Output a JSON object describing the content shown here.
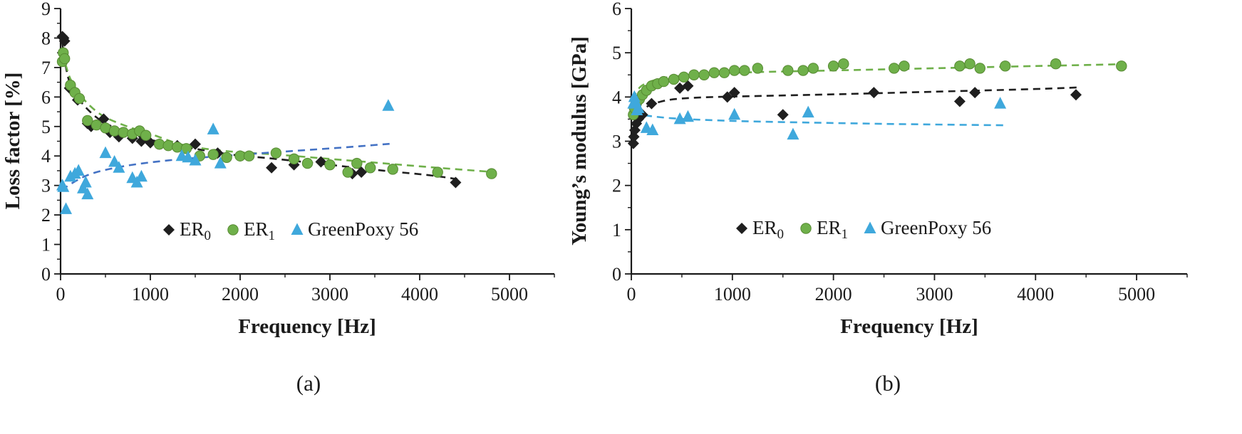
{
  "chart_data": [
    {
      "type": "scatter",
      "caption": "(a)",
      "xlabel": "Frequency [Hz]",
      "ylabel": "Loss factor [%]",
      "xlim": [
        0,
        5500
      ],
      "ylim": [
        0,
        9
      ],
      "xticks": [
        0,
        1000,
        2000,
        3000,
        4000,
        5000
      ],
      "yticks": [
        0,
        1,
        2,
        3,
        4,
        5,
        6,
        7,
        8,
        9
      ],
      "x_minor_step": 500,
      "y_minor_step": 0.5,
      "grid": false,
      "legend_position": "inside-bottom-center",
      "legend": [
        {
          "label": "ER",
          "sub": "0",
          "marker": "diamond",
          "color": "#1f1f1f"
        },
        {
          "label": "ER",
          "sub": "1",
          "marker": "circle",
          "color": "#6fb04a"
        },
        {
          "label": "GreenPoxy 56",
          "sub": "",
          "marker": "triangle",
          "color": "#3fa8dc"
        }
      ],
      "series": [
        {
          "name": "ER0",
          "marker": "diamond",
          "color": "#1f1f1f",
          "points": [
            [
              20,
              8.05
            ],
            [
              35,
              8.0
            ],
            [
              45,
              7.9
            ],
            [
              100,
              6.3
            ],
            [
              190,
              5.9
            ],
            [
              300,
              5.1
            ],
            [
              340,
              5.0
            ],
            [
              480,
              5.25
            ],
            [
              550,
              4.8
            ],
            [
              650,
              4.65
            ],
            [
              800,
              4.6
            ],
            [
              900,
              4.5
            ],
            [
              1000,
              4.45
            ],
            [
              1100,
              4.4
            ],
            [
              1300,
              4.35
            ],
            [
              1500,
              4.4
            ],
            [
              1750,
              4.1
            ],
            [
              2000,
              4.0
            ],
            [
              2350,
              3.6
            ],
            [
              2600,
              3.7
            ],
            [
              2900,
              3.8
            ],
            [
              3250,
              3.4
            ],
            [
              3350,
              3.45
            ],
            [
              4400,
              3.1
            ]
          ]
        },
        {
          "name": "ER1",
          "marker": "circle",
          "color": "#6fb04a",
          "points": [
            [
              20,
              7.2
            ],
            [
              30,
              7.5
            ],
            [
              45,
              7.3
            ],
            [
              110,
              6.4
            ],
            [
              160,
              6.15
            ],
            [
              210,
              5.95
            ],
            [
              300,
              5.2
            ],
            [
              400,
              5.05
            ],
            [
              500,
              4.95
            ],
            [
              600,
              4.85
            ],
            [
              700,
              4.8
            ],
            [
              800,
              4.75
            ],
            [
              880,
              4.85
            ],
            [
              950,
              4.7
            ],
            [
              1100,
              4.4
            ],
            [
              1200,
              4.35
            ],
            [
              1300,
              4.3
            ],
            [
              1400,
              4.25
            ],
            [
              1550,
              4.0
            ],
            [
              1700,
              4.05
            ],
            [
              1850,
              3.95
            ],
            [
              2000,
              4.0
            ],
            [
              2100,
              4.0
            ],
            [
              2400,
              4.1
            ],
            [
              2600,
              3.9
            ],
            [
              2750,
              3.75
            ],
            [
              3000,
              3.7
            ],
            [
              3200,
              3.45
            ],
            [
              3300,
              3.75
            ],
            [
              3450,
              3.6
            ],
            [
              3700,
              3.55
            ],
            [
              4200,
              3.45
            ],
            [
              4800,
              3.4
            ]
          ]
        },
        {
          "name": "GreenPoxy 56",
          "marker": "triangle",
          "color": "#3fa8dc",
          "points": [
            [
              20,
              3.0
            ],
            [
              30,
              2.95
            ],
            [
              60,
              2.2
            ],
            [
              110,
              3.3
            ],
            [
              160,
              3.4
            ],
            [
              200,
              3.5
            ],
            [
              250,
              2.9
            ],
            [
              280,
              3.1
            ],
            [
              300,
              2.7
            ],
            [
              500,
              4.1
            ],
            [
              600,
              3.8
            ],
            [
              650,
              3.6
            ],
            [
              800,
              3.25
            ],
            [
              850,
              3.1
            ],
            [
              900,
              3.3
            ],
            [
              1350,
              4.0
            ],
            [
              1420,
              3.95
            ],
            [
              1500,
              3.85
            ],
            [
              1700,
              4.9
            ],
            [
              1780,
              3.75
            ],
            [
              3650,
              5.7
            ]
          ]
        }
      ],
      "trendlines": [
        {
          "for": "ER0",
          "color": "#1f1f1f",
          "points": [
            [
              15,
              7.9
            ],
            [
              60,
              7.0
            ],
            [
              120,
              6.35
            ],
            [
              250,
              5.75
            ],
            [
              450,
              5.2
            ],
            [
              700,
              4.85
            ],
            [
              1000,
              4.55
            ],
            [
              1400,
              4.3
            ],
            [
              1900,
              4.05
            ],
            [
              2400,
              3.9
            ],
            [
              3000,
              3.7
            ],
            [
              3600,
              3.5
            ],
            [
              4100,
              3.35
            ],
            [
              4450,
              3.2
            ]
          ]
        },
        {
          "for": "ER1",
          "color": "#6fb04a",
          "points": [
            [
              15,
              7.5
            ],
            [
              60,
              7.05
            ],
            [
              120,
              6.55
            ],
            [
              250,
              5.95
            ],
            [
              450,
              5.4
            ],
            [
              700,
              5.05
            ],
            [
              1000,
              4.75
            ],
            [
              1400,
              4.35
            ],
            [
              1900,
              4.15
            ],
            [
              2400,
              4.05
            ],
            [
              3000,
              3.9
            ],
            [
              3600,
              3.75
            ],
            [
              4200,
              3.6
            ],
            [
              4850,
              3.45
            ]
          ]
        },
        {
          "for": "GreenPoxy 56",
          "color": "#4472c4",
          "points": [
            [
              10,
              2.85
            ],
            [
              300,
              3.35
            ],
            [
              700,
              3.65
            ],
            [
              1200,
              3.85
            ],
            [
              1800,
              4.0
            ],
            [
              2500,
              4.15
            ],
            [
              3200,
              4.3
            ],
            [
              3700,
              4.42
            ]
          ]
        }
      ]
    },
    {
      "type": "scatter",
      "caption": "(b)",
      "xlabel": "Frequency [Hz]",
      "ylabel": "Young’s modulus [GPa]",
      "xlim": [
        0,
        5500
      ],
      "ylim": [
        0,
        6
      ],
      "xticks": [
        0,
        1000,
        2000,
        3000,
        4000,
        5000
      ],
      "yticks": [
        0,
        1,
        2,
        3,
        4,
        5,
        6
      ],
      "x_minor_step": 500,
      "y_minor_step": 0.5,
      "grid": false,
      "legend_position": "inside-bottom-center",
      "legend": [
        {
          "label": "ER",
          "sub": "0",
          "marker": "diamond",
          "color": "#1f1f1f"
        },
        {
          "label": "ER",
          "sub": "1",
          "marker": "circle",
          "color": "#6fb04a"
        },
        {
          "label": "GreenPoxy 56",
          "sub": "",
          "marker": "triangle",
          "color": "#3fa8dc"
        }
      ],
      "series": [
        {
          "name": "ER0",
          "marker": "diamond",
          "color": "#1f1f1f",
          "points": [
            [
              20,
              2.95
            ],
            [
              25,
              3.1
            ],
            [
              35,
              3.25
            ],
            [
              50,
              3.4
            ],
            [
              70,
              3.5
            ],
            [
              110,
              3.6
            ],
            [
              200,
              3.85
            ],
            [
              480,
              4.2
            ],
            [
              560,
              4.25
            ],
            [
              950,
              4.0
            ],
            [
              1020,
              4.1
            ],
            [
              1500,
              3.6
            ],
            [
              2400,
              4.1
            ],
            [
              3250,
              3.9
            ],
            [
              3400,
              4.1
            ],
            [
              4400,
              4.05
            ]
          ]
        },
        {
          "name": "ER1",
          "marker": "circle",
          "color": "#6fb04a",
          "points": [
            [
              20,
              3.6
            ],
            [
              30,
              3.75
            ],
            [
              50,
              3.85
            ],
            [
              80,
              3.95
            ],
            [
              110,
              4.05
            ],
            [
              150,
              4.15
            ],
            [
              200,
              4.25
            ],
            [
              260,
              4.3
            ],
            [
              320,
              4.35
            ],
            [
              420,
              4.4
            ],
            [
              520,
              4.45
            ],
            [
              620,
              4.5
            ],
            [
              720,
              4.5
            ],
            [
              820,
              4.55
            ],
            [
              920,
              4.55
            ],
            [
              1020,
              4.6
            ],
            [
              1120,
              4.6
            ],
            [
              1250,
              4.65
            ],
            [
              1550,
              4.6
            ],
            [
              1700,
              4.6
            ],
            [
              1800,
              4.65
            ],
            [
              2000,
              4.7
            ],
            [
              2100,
              4.75
            ],
            [
              2600,
              4.65
            ],
            [
              2700,
              4.7
            ],
            [
              3250,
              4.7
            ],
            [
              3350,
              4.75
            ],
            [
              3450,
              4.65
            ],
            [
              3700,
              4.7
            ],
            [
              4200,
              4.75
            ],
            [
              4850,
              4.7
            ]
          ]
        },
        {
          "name": "GreenPoxy 56",
          "marker": "triangle",
          "color": "#3fa8dc",
          "points": [
            [
              20,
              3.85
            ],
            [
              30,
              4.0
            ],
            [
              40,
              3.9
            ],
            [
              55,
              3.7
            ],
            [
              70,
              3.75
            ],
            [
              150,
              3.3
            ],
            [
              210,
              3.25
            ],
            [
              480,
              3.5
            ],
            [
              560,
              3.55
            ],
            [
              1020,
              3.6
            ],
            [
              1600,
              3.15
            ],
            [
              1750,
              3.65
            ],
            [
              3650,
              3.85
            ]
          ]
        }
      ],
      "trendlines": [
        {
          "for": "ER0",
          "color": "#1f1f1f",
          "points": [
            [
              15,
              3.35
            ],
            [
              100,
              3.7
            ],
            [
              300,
              3.9
            ],
            [
              600,
              3.98
            ],
            [
              1200,
              4.02
            ],
            [
              2000,
              4.06
            ],
            [
              3000,
              4.12
            ],
            [
              4000,
              4.18
            ],
            [
              4450,
              4.22
            ]
          ]
        },
        {
          "for": "ER1",
          "color": "#6fb04a",
          "points": [
            [
              15,
              3.95
            ],
            [
              100,
              4.25
            ],
            [
              300,
              4.42
            ],
            [
              600,
              4.5
            ],
            [
              1200,
              4.56
            ],
            [
              2000,
              4.6
            ],
            [
              3000,
              4.65
            ],
            [
              4000,
              4.7
            ],
            [
              4850,
              4.74
            ]
          ]
        },
        {
          "for": "GreenPoxy 56",
          "color": "#3fa8dc",
          "points": [
            [
              15,
              3.62
            ],
            [
              400,
              3.52
            ],
            [
              1000,
              3.46
            ],
            [
              1800,
              3.42
            ],
            [
              2600,
              3.39
            ],
            [
              3700,
              3.36
            ]
          ]
        }
      ]
    }
  ],
  "colors": {
    "axis": "#1a1a1a",
    "er0": "#1f1f1f",
    "er1": "#6fb04a",
    "greenpoxy": "#3fa8dc",
    "greenpoxy_trend_a": "#4472c4"
  }
}
